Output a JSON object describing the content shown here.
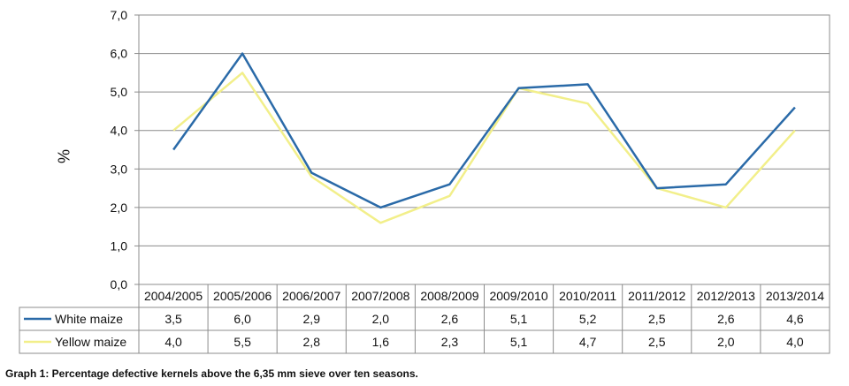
{
  "caption": "Graph 1: Percentage defective kernels above the 6,35 mm sieve over ten seasons.",
  "chart_data": {
    "type": "line",
    "title": "",
    "xlabel": "",
    "ylabel": "%",
    "ylim": [
      0,
      7
    ],
    "ytick_labels": [
      "0,0",
      "1,0",
      "2,0",
      "3,0",
      "4,0",
      "5,0",
      "6,0",
      "7,0"
    ],
    "grid": true,
    "legend": "data table below plot",
    "categories": [
      "2004/2005",
      "2005/2006",
      "2006/2007",
      "2007/2008",
      "2008/2009",
      "2009/2010",
      "2010/2011",
      "2011/2012",
      "2012/2013",
      "2013/2014"
    ],
    "series": [
      {
        "name": "White maize",
        "color": "#2a6aa8",
        "values": [
          3.5,
          6.0,
          2.9,
          2.0,
          2.6,
          5.1,
          5.2,
          2.5,
          2.6,
          4.6
        ],
        "labels": [
          "3,5",
          "6,0",
          "2,9",
          "2,0",
          "2,6",
          "5,1",
          "5,2",
          "2,5",
          "2,6",
          "4,6"
        ]
      },
      {
        "name": "Yellow maize",
        "color": "#f2ef8a",
        "values": [
          4.0,
          5.5,
          2.8,
          1.6,
          2.3,
          5.1,
          4.7,
          2.5,
          2.0,
          4.0
        ],
        "labels": [
          "4,0",
          "5,5",
          "2,8",
          "1,6",
          "2,3",
          "5,1",
          "4,7",
          "2,5",
          "2,0",
          "4,0"
        ]
      }
    ]
  }
}
